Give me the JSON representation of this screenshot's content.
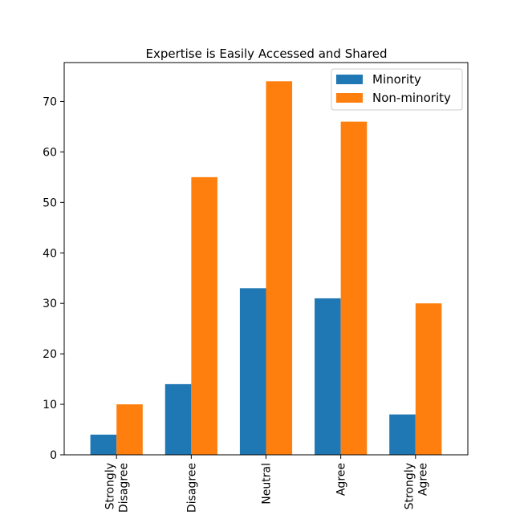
{
  "chart_data": {
    "type": "bar",
    "title": "Expertise is Easily Accessed and Shared",
    "xlabel": "",
    "ylabel": "",
    "categories": [
      "Strongly\nDisagree",
      "Disagree",
      "Neutral",
      "Agree",
      "Strongly\nAgree"
    ],
    "series": [
      {
        "name": "Minority",
        "values": [
          4,
          14,
          33,
          31,
          8
        ],
        "color": "#1f77b4"
      },
      {
        "name": "Non-minority",
        "values": [
          10,
          55,
          74,
          66,
          30
        ],
        "color": "#ff7f0e"
      }
    ],
    "yticks": [
      0,
      10,
      20,
      30,
      40,
      50,
      60,
      70
    ],
    "ylim": [
      0,
      77.7
    ],
    "grid": false,
    "legend_position": "top-right",
    "tick_label_rotation": 90
  }
}
